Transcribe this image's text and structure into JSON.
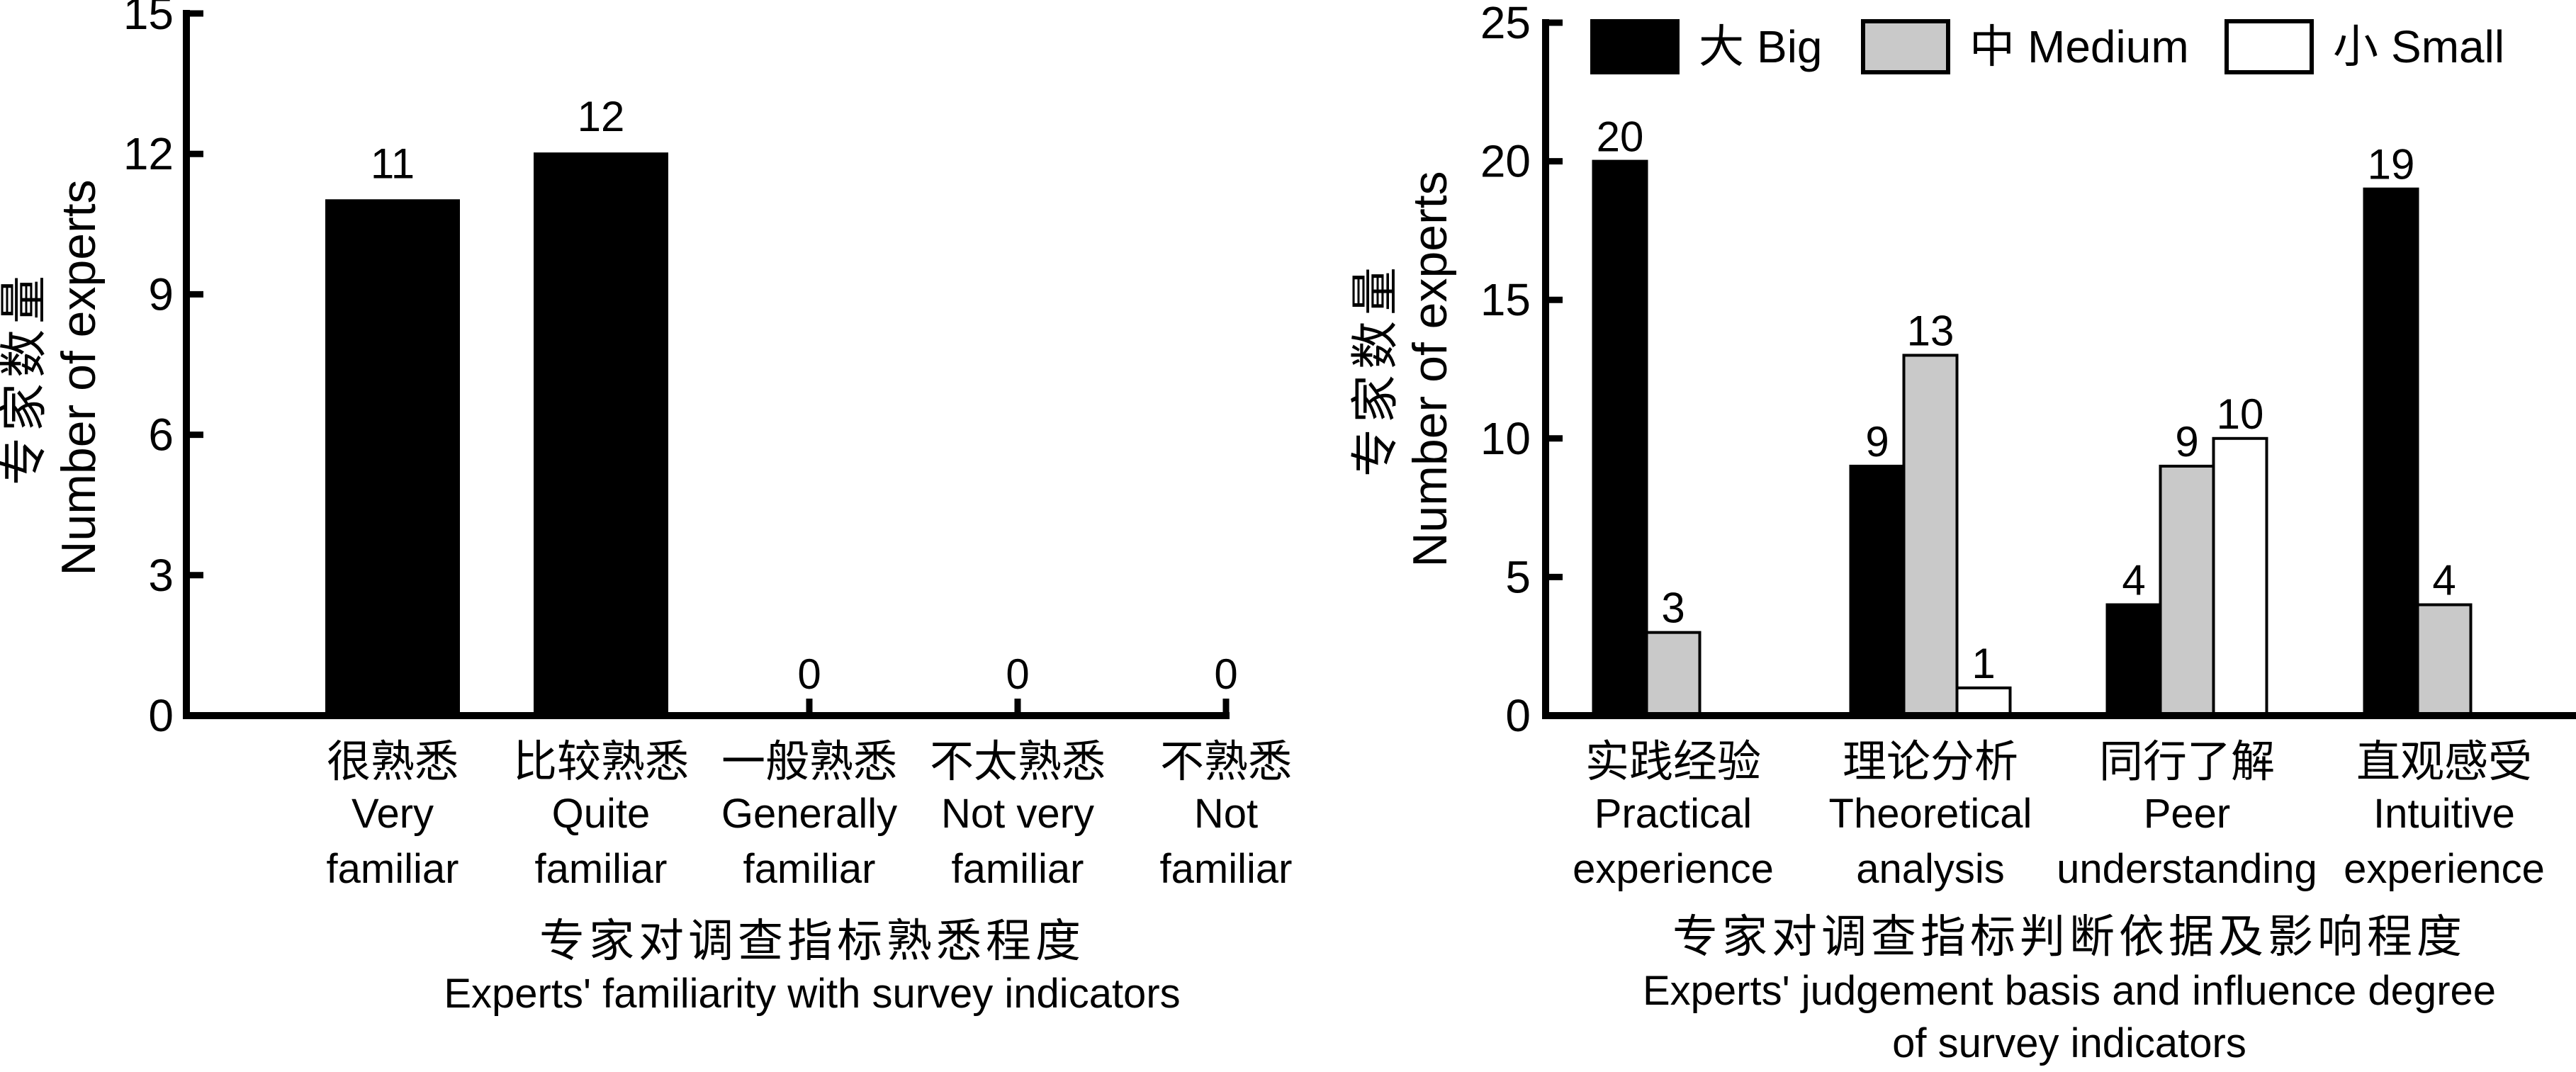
{
  "figure": {
    "background": "#ffffff",
    "text_color": "#000000",
    "description": "Two side-by-side bar charts about expert survey"
  },
  "chart_data": [
    {
      "id": "familiarity-chart",
      "type": "bar",
      "grid": false,
      "legend_position": "none",
      "bar_color": "#000000",
      "ylabel_zh": "专家数量",
      "ylabel_en": "Number of experts",
      "xlabel_zh": "专家对调查指标熟悉程度",
      "xlabel_en_lines": [
        "Experts' familiarity with survey indicators"
      ],
      "ylim": [
        0,
        15
      ],
      "yticks": [
        0,
        3,
        6,
        9,
        12,
        15
      ],
      "show_zero_value_labels": true,
      "categories": [
        {
          "zh": "很熟悉",
          "en_lines": [
            "Very",
            "familiar"
          ]
        },
        {
          "zh": "比较熟悉",
          "en_lines": [
            "Quite",
            "familiar"
          ]
        },
        {
          "zh": "一般熟悉",
          "en_lines": [
            "Generally",
            "familiar"
          ]
        },
        {
          "zh": "不太熟悉",
          "en_lines": [
            "Not very",
            "familiar"
          ]
        },
        {
          "zh": "不熟悉",
          "en_lines": [
            "Not",
            "familiar"
          ]
        }
      ],
      "values": [
        11,
        12,
        0,
        0,
        0
      ]
    },
    {
      "id": "judgement-chart",
      "type": "bar",
      "grouped": true,
      "grid": false,
      "legend_position": "top",
      "ylabel_zh": "专家数量",
      "ylabel_en": "Number of experts",
      "xlabel_zh": "专家对调查指标判断依据及影响程度",
      "xlabel_en_lines": [
        "Experts' judgement basis and influence degree",
        "of survey indicators"
      ],
      "ylim": [
        0,
        25
      ],
      "yticks": [
        0,
        5,
        10,
        15,
        20,
        25
      ],
      "show_zero_value_labels": false,
      "categories": [
        {
          "zh": "实践经验",
          "en_lines": [
            "Practical",
            "experience"
          ]
        },
        {
          "zh": "理论分析",
          "en_lines": [
            "Theoretical",
            "analysis"
          ]
        },
        {
          "zh": "同行了解",
          "en_lines": [
            "Peer",
            "understanding"
          ]
        },
        {
          "zh": "直观感受",
          "en_lines": [
            "Intuitive",
            "experience"
          ]
        }
      ],
      "series": [
        {
          "zh": "大",
          "en": "Big",
          "color": "#000000",
          "values": [
            20,
            9,
            4,
            19
          ]
        },
        {
          "zh": "中",
          "en": "Medium",
          "color": "#c9c9c9",
          "values": [
            3,
            13,
            9,
            4
          ]
        },
        {
          "zh": "小",
          "en": "Small",
          "color": "#ffffff",
          "values": [
            0,
            1,
            10,
            0
          ]
        }
      ]
    }
  ]
}
